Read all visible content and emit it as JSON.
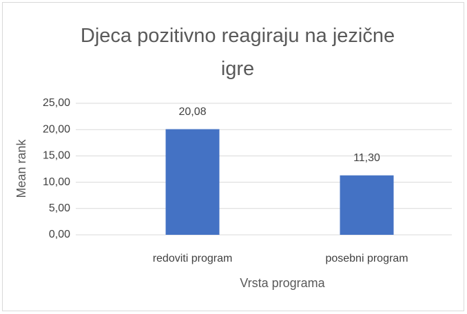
{
  "chart_data": {
    "type": "bar",
    "title": "Djeca pozitivno reagiraju na jezične igre",
    "categories": [
      "redoviti program",
      "posebni program"
    ],
    "values": [
      20.08,
      11.3
    ],
    "value_labels": [
      "20,08",
      "11,30"
    ],
    "color": "#4472c4",
    "xlabel": "Vrsta programa",
    "ylabel": "Mean rank",
    "ylim": [
      0,
      25
    ],
    "yticks": [
      {
        "value": 0,
        "label": "0,00"
      },
      {
        "value": 5,
        "label": "5,00"
      },
      {
        "value": 10,
        "label": "10,00"
      },
      {
        "value": 15,
        "label": "15,00"
      },
      {
        "value": 20,
        "label": "20,00"
      },
      {
        "value": 25,
        "label": "25,00"
      }
    ],
    "grid": true
  }
}
